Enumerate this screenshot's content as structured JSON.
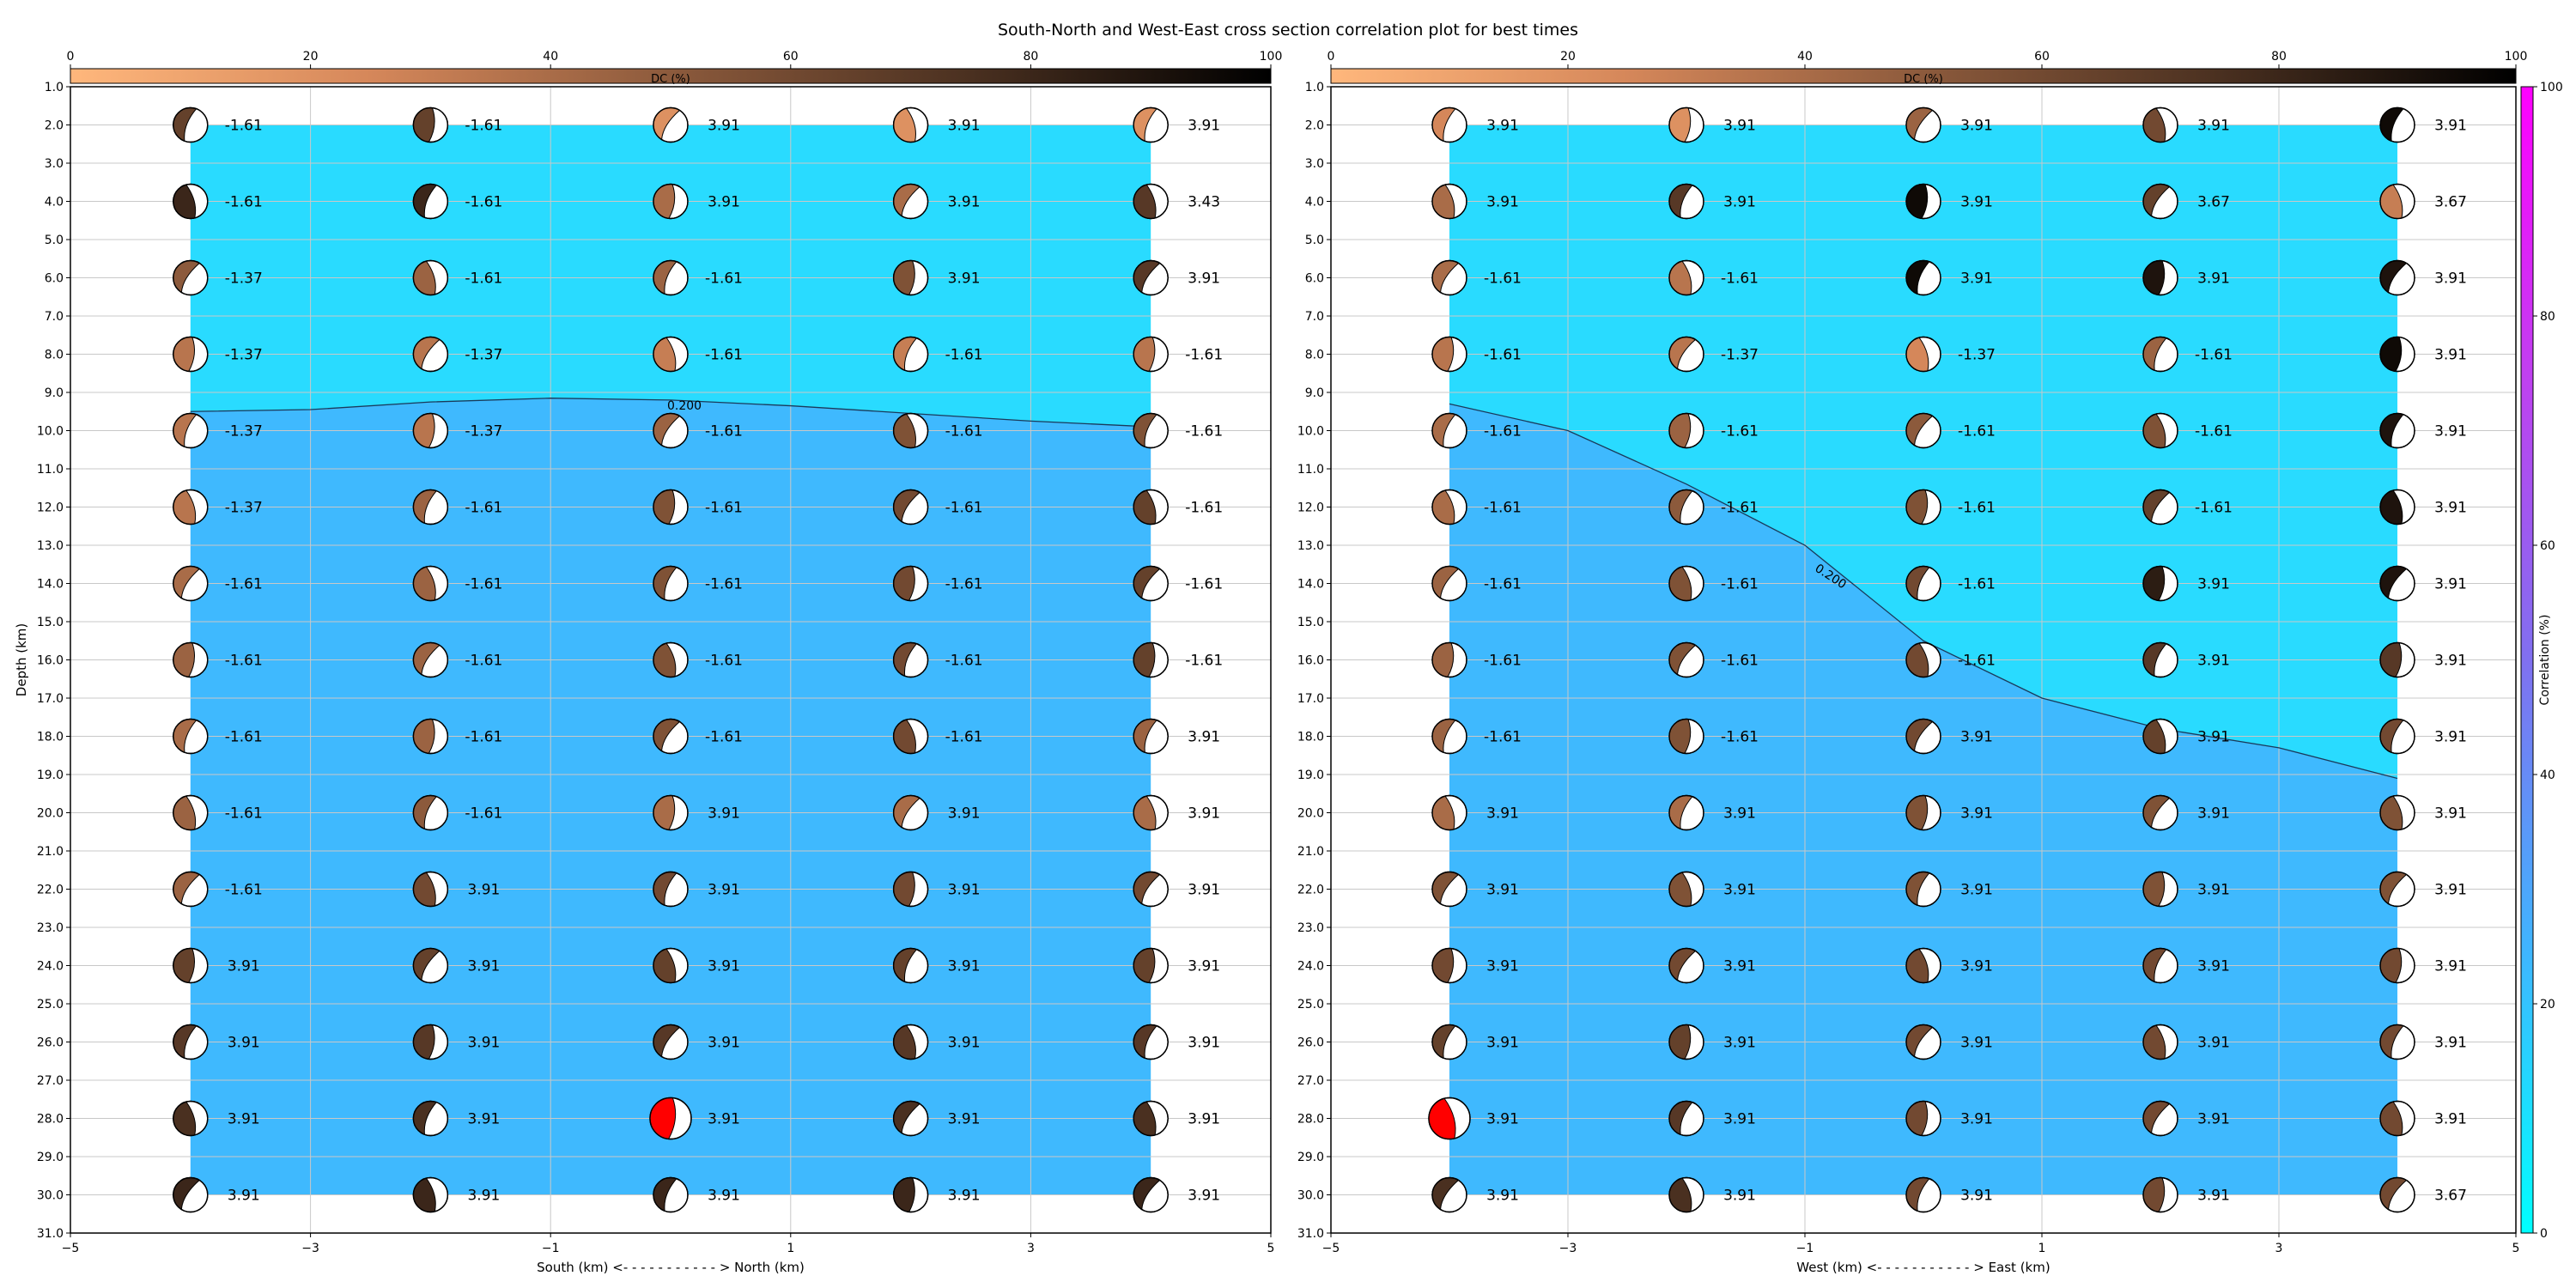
{
  "title": "South-North and West-East cross section correlation plot for best times",
  "colors": {
    "background": "#ffffff",
    "grid": "#c8c8c8",
    "dc_colorbar_stops": [
      "#ffb77c",
      "#d5875a",
      "#8c5a3c",
      "#4a3020",
      "#000000"
    ],
    "corr_colorbar_stops": [
      "#00ffff",
      "#40b4ff",
      "#8070f0",
      "#c040f0",
      "#ff00ff"
    ],
    "region_low": "#29dbff",
    "region_high": "#3fb9fe",
    "best_solution": "#ff0000",
    "contour": "#1a3a5a"
  },
  "chart_data": [
    {
      "type": "scatter",
      "id": "sn",
      "xlabel": "South (km) <- - - - - - - - - - - > North (km)",
      "ylabel": "Depth (km)",
      "xlim": [
        -5,
        5
      ],
      "ylim": [
        31,
        1
      ],
      "x_ticks": [
        -5,
        -3,
        -1,
        1,
        3,
        5
      ],
      "y_ticks": [
        "1.0",
        "2.0",
        "3.0",
        "4.0",
        "5.0",
        "6.0",
        "7.0",
        "8.0",
        "9.0",
        "10.0",
        "11.0",
        "12.0",
        "13.0",
        "14.0",
        "15.0",
        "16.0",
        "17.0",
        "18.0",
        "19.0",
        "20.0",
        "21.0",
        "22.0",
        "23.0",
        "24.0",
        "25.0",
        "26.0",
        "27.0",
        "28.0",
        "29.0",
        "30.0",
        "31.0"
      ],
      "grid": true,
      "dc_colorbar": {
        "label": "DC (%)",
        "ticks": [
          0,
          20,
          40,
          60,
          80,
          100
        ],
        "range": [
          0,
          100
        ],
        "position": "top"
      },
      "x_positions": [
        -4,
        -2,
        0,
        2,
        4
      ],
      "depths": [
        2,
        4,
        6,
        8,
        10,
        12,
        14,
        16,
        18,
        20,
        22,
        24,
        26,
        28,
        30
      ],
      "time_shifts": [
        [
          "-1.61",
          "-1.61",
          "3.91",
          "3.91",
          "3.91"
        ],
        [
          "-1.61",
          "-1.61",
          "3.91",
          "3.91",
          "3.43"
        ],
        [
          "-1.37",
          "-1.61",
          "-1.61",
          "3.91",
          "3.91"
        ],
        [
          "-1.37",
          "-1.37",
          "-1.61",
          "-1.61",
          "-1.61"
        ],
        [
          "-1.37",
          "-1.37",
          "-1.61",
          "-1.61",
          "-1.61"
        ],
        [
          "-1.37",
          "-1.61",
          "-1.61",
          "-1.61",
          "-1.61"
        ],
        [
          "-1.61",
          "-1.61",
          "-1.61",
          "-1.61",
          "-1.61"
        ],
        [
          "-1.61",
          "-1.61",
          "-1.61",
          "-1.61",
          "-1.61"
        ],
        [
          "-1.61",
          "-1.61",
          "-1.61",
          "-1.61",
          "3.91"
        ],
        [
          "-1.61",
          "-1.61",
          "3.91",
          "3.91",
          "3.91"
        ],
        [
          "-1.61",
          "3.91",
          "3.91",
          "3.91",
          "3.91"
        ],
        [
          "3.91",
          "3.91",
          "3.91",
          "3.91",
          "3.91"
        ],
        [
          "3.91",
          "3.91",
          "3.91",
          "3.91",
          "3.91"
        ],
        [
          "3.91",
          "3.91",
          "3.91",
          "3.91",
          "3.91"
        ],
        [
          "3.91",
          "3.91",
          "3.91",
          "3.91",
          "3.91"
        ]
      ],
      "dc_percent": [
        [
          65,
          65,
          20,
          20,
          20
        ],
        [
          80,
          80,
          40,
          40,
          70
        ],
        [
          50,
          45,
          45,
          55,
          70
        ],
        [
          35,
          35,
          30,
          30,
          35
        ],
        [
          35,
          35,
          45,
          55,
          55
        ],
        [
          35,
          45,
          55,
          60,
          65
        ],
        [
          40,
          45,
          55,
          60,
          65
        ],
        [
          45,
          45,
          55,
          60,
          65
        ],
        [
          40,
          45,
          55,
          60,
          45
        ],
        [
          45,
          50,
          40,
          40,
          40
        ],
        [
          45,
          60,
          60,
          60,
          60
        ],
        [
          65,
          65,
          65,
          65,
          65
        ],
        [
          70,
          70,
          70,
          70,
          70
        ],
        [
          75,
          75,
          75,
          75,
          75
        ],
        [
          80,
          80,
          80,
          80,
          80
        ]
      ],
      "correlation_contour": {
        "label": "0.200",
        "points": [
          [
            -4,
            9.5
          ],
          [
            -3,
            9.45
          ],
          [
            -2,
            9.25
          ],
          [
            -1,
            9.15
          ],
          [
            0,
            9.2
          ],
          [
            1,
            9.35
          ],
          [
            2,
            9.55
          ],
          [
            3,
            9.75
          ],
          [
            4,
            9.9
          ]
        ]
      },
      "best_solution": {
        "x": 0,
        "depth": 28
      }
    },
    {
      "type": "scatter",
      "id": "we",
      "xlabel": "West (km) <- - - - - - - - - - - > East (km)",
      "ylabel": "",
      "xlim": [
        -5,
        5
      ],
      "ylim": [
        31,
        1
      ],
      "x_ticks": [
        -5,
        -3,
        -1,
        1,
        3,
        5
      ],
      "y_ticks": [
        "1.0",
        "2.0",
        "3.0",
        "4.0",
        "5.0",
        "6.0",
        "7.0",
        "8.0",
        "9.0",
        "10.0",
        "11.0",
        "12.0",
        "13.0",
        "14.0",
        "15.0",
        "16.0",
        "17.0",
        "18.0",
        "19.0",
        "20.0",
        "21.0",
        "22.0",
        "23.0",
        "24.0",
        "25.0",
        "26.0",
        "27.0",
        "28.0",
        "29.0",
        "30.0",
        "31.0"
      ],
      "grid": true,
      "dc_colorbar": {
        "label": "DC (%)",
        "ticks": [
          0,
          20,
          40,
          60,
          80,
          100
        ],
        "range": [
          0,
          100
        ],
        "position": "top"
      },
      "corr_colorbar": {
        "label": "Correlation (%)",
        "ticks": [
          0,
          20,
          40,
          60,
          80,
          100
        ],
        "range": [
          0,
          100
        ],
        "position": "right"
      },
      "x_positions": [
        -4,
        -2,
        0,
        2,
        4
      ],
      "depths": [
        2,
        4,
        6,
        8,
        10,
        12,
        14,
        16,
        18,
        20,
        22,
        24,
        26,
        28,
        30
      ],
      "time_shifts": [
        [
          "3.91",
          "3.91",
          "3.91",
          "3.91",
          "3.91"
        ],
        [
          "3.91",
          "3.91",
          "3.91",
          "3.67",
          "3.67"
        ],
        [
          "-1.61",
          "-1.61",
          "3.91",
          "3.91",
          "3.91"
        ],
        [
          "-1.61",
          "-1.37",
          "-1.37",
          "-1.61",
          "3.91"
        ],
        [
          "-1.61",
          "-1.61",
          "-1.61",
          "-1.61",
          "3.91"
        ],
        [
          "-1.61",
          "-1.61",
          "-1.61",
          "-1.61",
          "3.91"
        ],
        [
          "-1.61",
          "-1.61",
          "-1.61",
          "3.91",
          "3.91"
        ],
        [
          "-1.61",
          "-1.61",
          "-1.61",
          "3.91",
          "3.91"
        ],
        [
          "-1.61",
          "-1.61",
          "3.91",
          "3.91",
          "3.91"
        ],
        [
          "3.91",
          "3.91",
          "3.91",
          "3.91",
          "3.91"
        ],
        [
          "3.91",
          "3.91",
          "3.91",
          "3.91",
          "3.91"
        ],
        [
          "3.91",
          "3.91",
          "3.91",
          "3.91",
          "3.91"
        ],
        [
          "3.91",
          "3.91",
          "3.91",
          "3.91",
          "3.91"
        ],
        [
          "3.91",
          "3.91",
          "3.91",
          "3.91",
          "3.91"
        ],
        [
          "3.91",
          "3.91",
          "3.91",
          "3.91",
          "3.67"
        ]
      ],
      "dc_percent": [
        [
          25,
          20,
          45,
          60,
          95
        ],
        [
          40,
          70,
          95,
          65,
          30
        ],
        [
          40,
          35,
          95,
          90,
          90
        ],
        [
          35,
          35,
          25,
          45,
          95
        ],
        [
          40,
          45,
          50,
          55,
          90
        ],
        [
          40,
          50,
          55,
          65,
          90
        ],
        [
          45,
          55,
          60,
          85,
          90
        ],
        [
          45,
          55,
          60,
          70,
          70
        ],
        [
          45,
          55,
          60,
          65,
          60
        ],
        [
          40,
          40,
          55,
          55,
          55
        ],
        [
          55,
          55,
          55,
          55,
          55
        ],
        [
          60,
          60,
          60,
          60,
          60
        ],
        [
          65,
          65,
          60,
          60,
          60
        ],
        [
          70,
          70,
          60,
          60,
          60
        ],
        [
          75,
          75,
          60,
          60,
          60
        ]
      ],
      "correlation_contour": {
        "label": "0.200",
        "points": [
          [
            -4,
            9.3
          ],
          [
            -3,
            10.0
          ],
          [
            -2,
            11.4
          ],
          [
            -1,
            13.0
          ],
          [
            0,
            15.5
          ],
          [
            1,
            17.0
          ],
          [
            2,
            17.8
          ],
          [
            3,
            18.3
          ],
          [
            4,
            19.1
          ]
        ]
      },
      "best_solution": {
        "x": -4,
        "depth": 28
      }
    }
  ]
}
